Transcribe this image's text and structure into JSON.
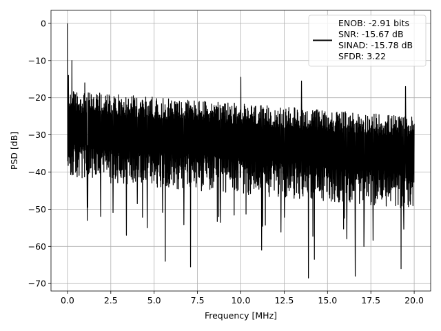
{
  "chart_data": {
    "type": "line",
    "title": "",
    "xlabel": "Frequency [MHz]",
    "ylabel": "PSD [dB]",
    "xlim": [
      -0.95,
      20.95
    ],
    "ylim": [
      -72,
      3.5
    ],
    "x_ticks": [
      0.0,
      2.5,
      5.0,
      7.5,
      10.0,
      12.5,
      15.0,
      17.5,
      20.0
    ],
    "x_tick_labels": [
      "0.0",
      "2.5",
      "5.0",
      "7.5",
      "10.0",
      "12.5",
      "15.0",
      "17.5",
      "20.0"
    ],
    "y_ticks": [
      0,
      -10,
      -20,
      -30,
      -40,
      -50,
      -60,
      -70
    ],
    "y_tick_labels": [
      "0",
      "−10",
      "−20",
      "−30",
      "−40",
      "−50",
      "−60",
      "−70"
    ],
    "grid": true,
    "legend_position": "top-right",
    "legend_entries": [
      "ENOB: -2.91 bits",
      "SNR: -15.67 dB",
      "SINAD: -15.78 dB",
      "SFDR: 3.22"
    ],
    "series": [
      {
        "color": "#000000",
        "x_range": [
          0,
          20
        ],
        "noise_floor": {
          "upper": [
            -20,
            -27
          ],
          "lower": [
            -38,
            -46
          ]
        },
        "peaks": [
          {
            "x": 0.0,
            "y": 0.0
          },
          {
            "x": 0.05,
            "y": -14
          },
          {
            "x": 0.1,
            "y": -36
          },
          {
            "x": 0.25,
            "y": -10
          },
          {
            "x": 1.0,
            "y": -16
          },
          {
            "x": 10.0,
            "y": -14.5
          },
          {
            "x": 13.5,
            "y": -15.5
          },
          {
            "x": 19.5,
            "y": -17
          }
        ],
        "dips": [
          {
            "x": 1.15,
            "y": -53
          },
          {
            "x": 3.4,
            "y": -57
          },
          {
            "x": 4.6,
            "y": -55
          },
          {
            "x": 5.65,
            "y": -64
          },
          {
            "x": 7.1,
            "y": -65.5
          },
          {
            "x": 11.2,
            "y": -61
          },
          {
            "x": 13.9,
            "y": -68.5
          },
          {
            "x": 14.25,
            "y": -63.5
          },
          {
            "x": 16.6,
            "y": -68
          },
          {
            "x": 17.1,
            "y": -60
          },
          {
            "x": 19.25,
            "y": -66
          }
        ]
      }
    ]
  }
}
